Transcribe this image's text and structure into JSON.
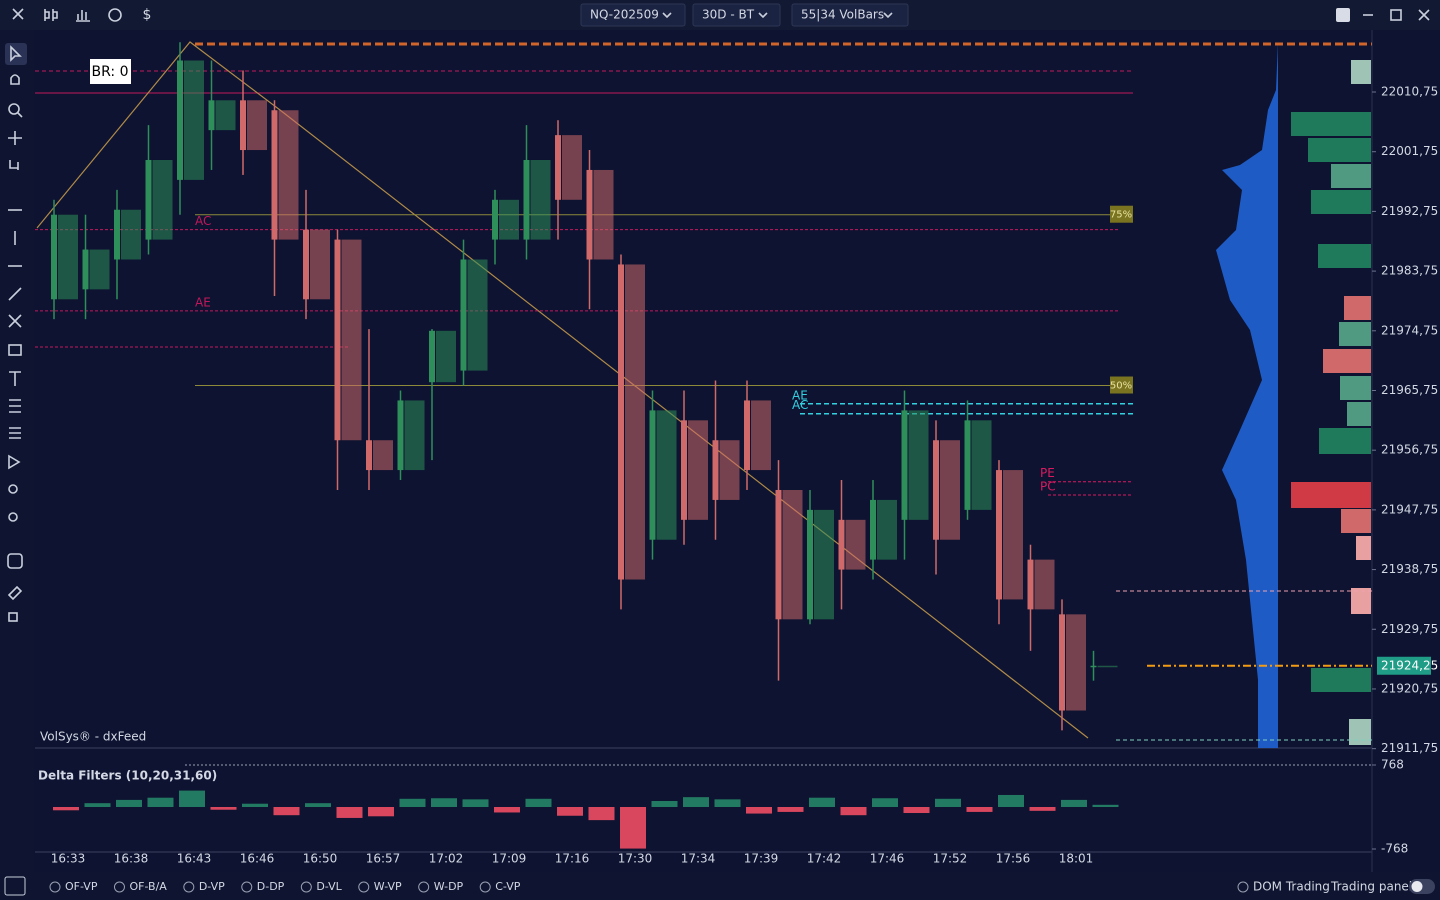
{
  "toolbar": {
    "symbol": "NQ-202509",
    "period": "30D - BT",
    "bars": "55|34 VolBars",
    "currency": "$"
  },
  "chart_data": [
    {
      "type": "candlestick",
      "watermark": "VolSys® - dxFeed",
      "badge": "BR: 0",
      "categories": [
        "16:33",
        null,
        "16:38",
        null,
        "16:43",
        null,
        "16:46",
        null,
        "16:50",
        null,
        "16:57",
        null,
        "17:02",
        null,
        "17:09",
        null,
        "17:16",
        null,
        "17:30",
        null,
        "17:34",
        null,
        "17:39",
        null,
        "17:42",
        null,
        "17:46",
        null,
        "17:52",
        null,
        "17:56",
        null,
        "18:01",
        null
      ],
      "open": [
        21979.5,
        21981,
        21985.5,
        21988.5,
        21997.5,
        22005,
        22009.5,
        22008,
        21990,
        21988.5,
        21958.25,
        21953.75,
        21967,
        21968.75,
        21988.5,
        21988.5,
        22004.25,
        21999,
        21984.75,
        21943.25,
        21961.25,
        21958.25,
        21964.25,
        21950.75,
        21931.25,
        21946.25,
        21940.25,
        21946.25,
        21958.25,
        21947.75,
        21953.75,
        21940.25,
        21932,
        21924.25
      ],
      "high": [
        21994.5,
        21992.25,
        21996,
        22005.75,
        22018.25,
        22015.5,
        22014,
        22009.5,
        21996,
        21990,
        21975,
        21965.75,
        21975,
        21988.5,
        21996,
        22005.75,
        22006.5,
        22002,
        21986.25,
        21965.75,
        21965.75,
        21967.25,
        21967.25,
        21955.25,
        21950.75,
        21952.25,
        21952.25,
        21965.75,
        21961.25,
        21964.25,
        21955.25,
        21942.5,
        21934.25,
        21926.5
      ],
      "low": [
        21976.5,
        21976.5,
        21979.5,
        21986.25,
        21992.25,
        21999,
        21998.25,
        21980,
        21976.5,
        21950.75,
        21950.75,
        21952.25,
        21955.25,
        21966.5,
        21984.75,
        21985.5,
        21988.5,
        21978,
        21932.75,
        21940.25,
        21942.5,
        21943.25,
        21950.75,
        21922,
        21930.5,
        21932.75,
        21937.25,
        21940.25,
        21938,
        21946.25,
        21930.5,
        21926.5,
        21914.5,
        21922
      ],
      "close": [
        21992.25,
        21987,
        21993,
        22000.5,
        22015.5,
        22009.5,
        22002,
        21988.5,
        21979.5,
        21958.25,
        21953.75,
        21964.25,
        21974.75,
        21985.5,
        21994.5,
        22000.5,
        21994.5,
        21985.5,
        21937.25,
        21962.75,
        21946.25,
        21949.25,
        21953.75,
        21931.25,
        21947.75,
        21938.75,
        21949.25,
        21962.75,
        21943.25,
        21961.25,
        21934.25,
        21932.75,
        21917.5,
        21924.25
      ],
      "up_color": "#2f8f5b",
      "down_color": "#d06a6a",
      "ylim": [
        21911.85,
        22018.29
      ],
      "yticks": [
        {
          "value": 22010.75,
          "label": "22010,75"
        },
        {
          "value": 22001.75,
          "label": "22001,75"
        },
        {
          "value": 21992.75,
          "label": "21992,75"
        },
        {
          "value": 21983.75,
          "label": "21983,75"
        },
        {
          "value": 21974.75,
          "label": "21974,75"
        },
        {
          "value": 21965.75,
          "label": "21965,75"
        },
        {
          "value": 21956.75,
          "label": "21956,75"
        },
        {
          "value": 21947.75,
          "label": "21947,75"
        },
        {
          "value": 21938.75,
          "label": "21938,75"
        },
        {
          "value": 21929.75,
          "label": "21929,75"
        },
        {
          "value": 21920.75,
          "label": "21920,75"
        },
        {
          "value": 21911.75,
          "label": "21911,75"
        }
      ],
      "last_price": {
        "value": 21924.25,
        "label": "21924,25"
      },
      "levels": [
        {
          "label": "AC",
          "value": 21990,
          "color": "#c2185b"
        },
        {
          "label": "AE",
          "value": 21977.75,
          "color": "#c2185b"
        },
        {
          "label": "75%",
          "value": 21992.25,
          "color": "#8d8a3a"
        },
        {
          "label": "50%",
          "value": 21966.5,
          "color": "#8d8a3a"
        },
        {
          "label": "AE",
          "value": 21963.75,
          "color": "#33d0e0"
        },
        {
          "label": "AC",
          "value": 21962.25,
          "color": "#33d0e0"
        },
        {
          "label": "PE",
          "value": 21952,
          "color": "#d81b60"
        },
        {
          "label": "PC",
          "value": 21950,
          "color": "#d81b60"
        }
      ]
    },
    {
      "type": "bar",
      "title": "Delta Filters (10,20,31,60)",
      "values": [
        -60,
        70,
        130,
        170,
        300,
        -50,
        60,
        -150,
        70,
        -200,
        -170,
        150,
        160,
        140,
        -100,
        150,
        -160,
        -240,
        -760,
        110,
        180,
        140,
        -120,
        -90,
        170,
        -150,
        160,
        -110,
        150,
        -90,
        220,
        -70,
        130,
        40
      ],
      "up_color": "#237a62",
      "down_color": "#d9475e",
      "ylim": [
        -768,
        768
      ],
      "yticks": [
        768,
        -768
      ]
    }
  ],
  "bottom_bar": {
    "items": [
      "OF-VP",
      "OF-B/A",
      "D-VP",
      "D-DP",
      "D-VL",
      "W-VP",
      "W-DP",
      "C-VP"
    ],
    "dom": "DOM Trading",
    "panel": "Trading panel"
  }
}
